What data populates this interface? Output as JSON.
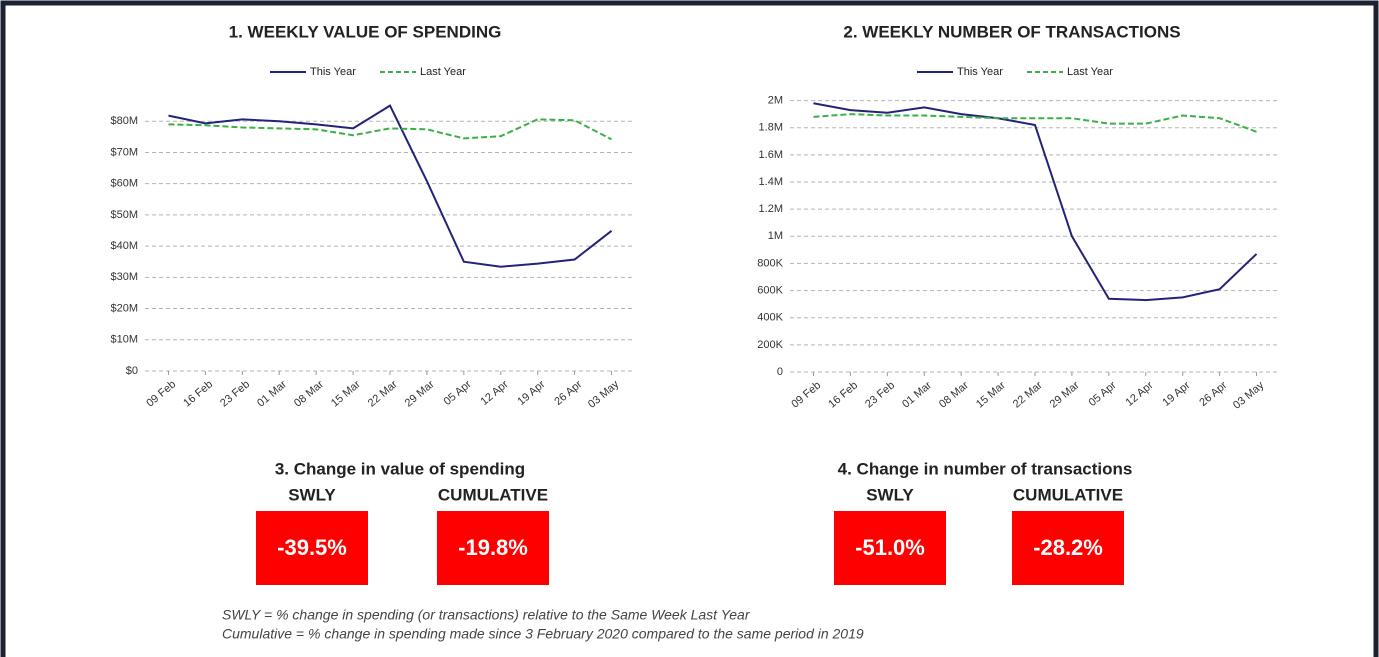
{
  "chart_data": [
    {
      "type": "line",
      "title": "1. WEEKLY VALUE OF SPENDING",
      "categories": [
        "09 Feb",
        "16 Feb",
        "23 Feb",
        "01 Mar",
        "08 Mar",
        "15 Mar",
        "22 Mar",
        "29 Mar",
        "05 Apr",
        "12 Apr",
        "19 Apr",
        "26 Apr",
        "03 May"
      ],
      "series": [
        {
          "name": "This Year",
          "color": "#23237a",
          "dash": false,
          "values": [
            81800000,
            79300000,
            80600000,
            80000000,
            79000000,
            77700000,
            85000000,
            60800000,
            35000000,
            33400000,
            34400000,
            35700000,
            44900000
          ]
        },
        {
          "name": "Last Year",
          "color": "#3cb043",
          "dash": true,
          "values": [
            79000000,
            78700000,
            78000000,
            77700000,
            77400000,
            75500000,
            77700000,
            77400000,
            74500000,
            75200000,
            80600000,
            80300000,
            74200000
          ]
        }
      ],
      "ylim": [
        0,
        90000000
      ],
      "yticks": [
        {
          "value": 0,
          "label": "$0"
        },
        {
          "value": 10000000,
          "label": "$10M"
        },
        {
          "value": 20000000,
          "label": "$20M"
        },
        {
          "value": 30000000,
          "label": "$30M"
        },
        {
          "value": 40000000,
          "label": "$40M"
        },
        {
          "value": 50000000,
          "label": "$50M"
        },
        {
          "value": 60000000,
          "label": "$60M"
        },
        {
          "value": 70000000,
          "label": "$70M"
        },
        {
          "value": 80000000,
          "label": "$80M"
        }
      ],
      "grid": true,
      "legend": "top"
    },
    {
      "type": "line",
      "title": "2. WEEKLY NUMBER OF TRANSACTIONS",
      "categories": [
        "09 Feb",
        "16 Feb",
        "23 Feb",
        "01 Mar",
        "08 Mar",
        "15 Mar",
        "22 Mar",
        "29 Mar",
        "05 Apr",
        "12 Apr",
        "19 Apr",
        "26 Apr",
        "03 May"
      ],
      "series": [
        {
          "name": "This Year",
          "color": "#23237a",
          "dash": false,
          "values": [
            1980000,
            1930000,
            1910000,
            1950000,
            1900000,
            1870000,
            1820000,
            1000000,
            540000,
            530000,
            550000,
            610000,
            870000
          ]
        },
        {
          "name": "Last Year",
          "color": "#3cb043",
          "dash": true,
          "values": [
            1880000,
            1900000,
            1890000,
            1890000,
            1880000,
            1870000,
            1870000,
            1870000,
            1830000,
            1830000,
            1890000,
            1870000,
            1770000
          ]
        }
      ],
      "ylim": [
        0,
        2100000
      ],
      "yticks": [
        0,
        {
          "value": 200000,
          "label": "200K"
        },
        {
          "value": 400000,
          "label": "400K"
        },
        {
          "value": 600000,
          "label": "600K"
        },
        {
          "value": 800000,
          "label": "800K"
        },
        {
          "value": 1000000,
          "label": "1M"
        },
        {
          "value": 1200000,
          "label": "1.2M"
        },
        {
          "value": 1400000,
          "label": "1.4M"
        },
        {
          "value": 1600000,
          "label": "1.6M"
        },
        {
          "value": 1800000,
          "label": "1.8M"
        },
        {
          "value": 2000000,
          "label": "2M"
        }
      ],
      "grid": true,
      "legend": "top"
    }
  ],
  "panels": [
    {
      "title": "3. Change in value of spending",
      "metrics": [
        {
          "label": "SWLY",
          "value": "-39.5%"
        },
        {
          "label": "CUMULATIVE",
          "value": "-19.8%"
        }
      ]
    },
    {
      "title": "4. Change in number of transactions",
      "metrics": [
        {
          "label": "SWLY",
          "value": "-51.0%"
        },
        {
          "label": "CUMULATIVE",
          "value": "-28.2%"
        }
      ]
    }
  ],
  "footnotes": [
    "SWLY = % change in spending (or transactions) relative to the Same Week Last Year",
    "Cumulative = % change in spending made since 3 February 2020 compared to the same period in 2019"
  ]
}
